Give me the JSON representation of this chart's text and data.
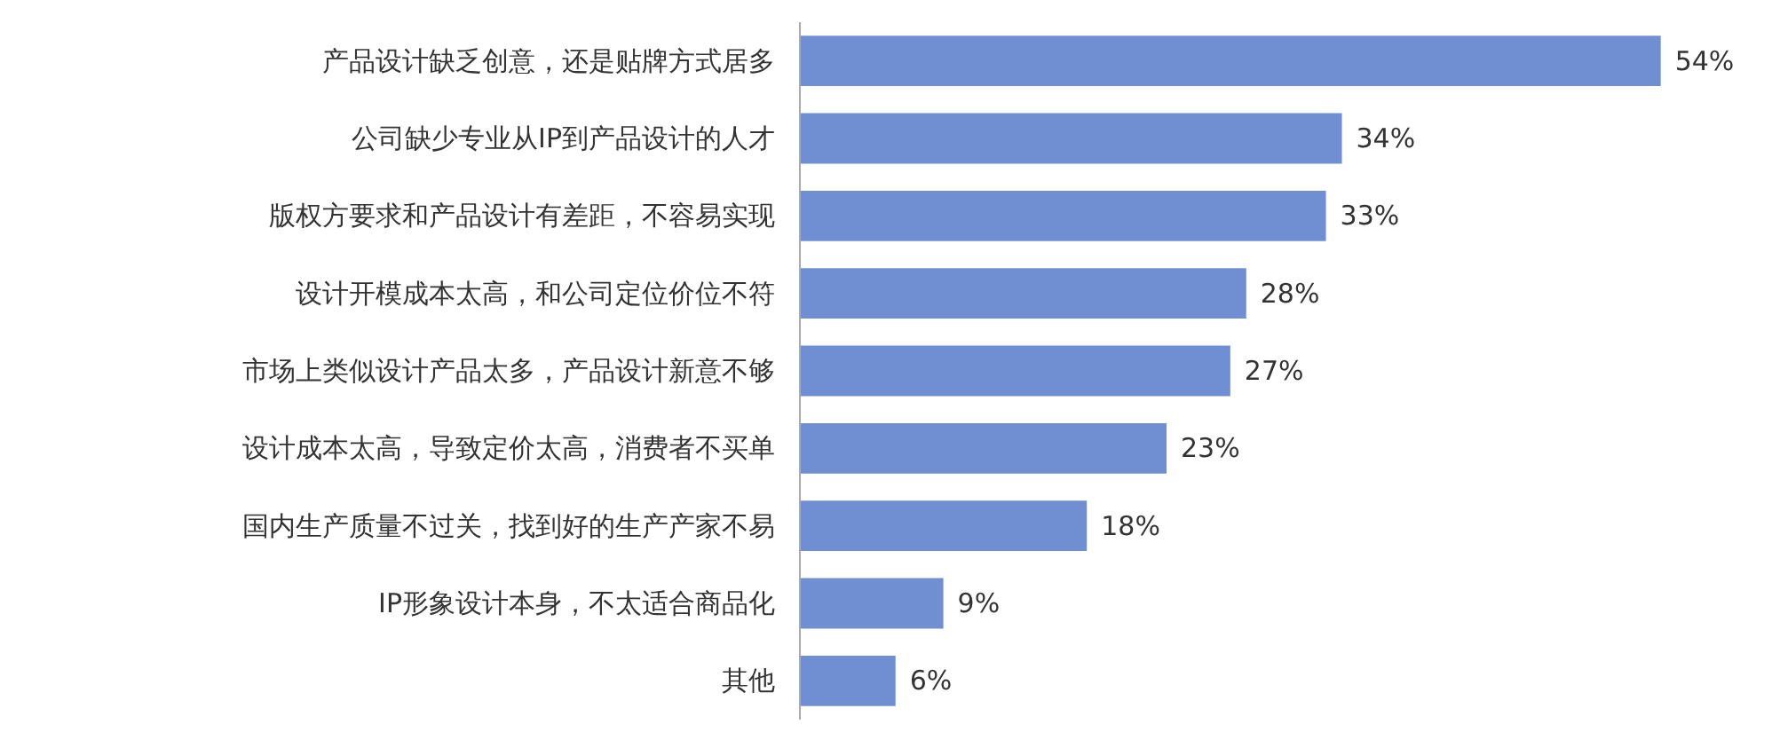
{
  "chart_data": {
    "type": "bar",
    "orientation": "horizontal",
    "categories": [
      "产品设计缺乏创意，还是贴牌方式居多",
      "公司缺少专业从IP到产品设计的人才",
      "版权方要求和产品设计有差距，不容易实现",
      "设计开模成本太高，和公司定位价位不符",
      "市场上类似设计产品太多，产品设计新意不够",
      "设计成本太高，导致定价太高，消费者不买单",
      "国内生产质量不过关，找到好的生产产家不易",
      "IP形象设计本身，不太适合商品化",
      "其他"
    ],
    "values": [
      54,
      34,
      33,
      28,
      27,
      23,
      18,
      9,
      6
    ],
    "value_labels": [
      "54%",
      "34%",
      "33%",
      "28%",
      "27%",
      "23%",
      "18%",
      "9%",
      "6%"
    ],
    "color": "#6f8fd2"
  }
}
